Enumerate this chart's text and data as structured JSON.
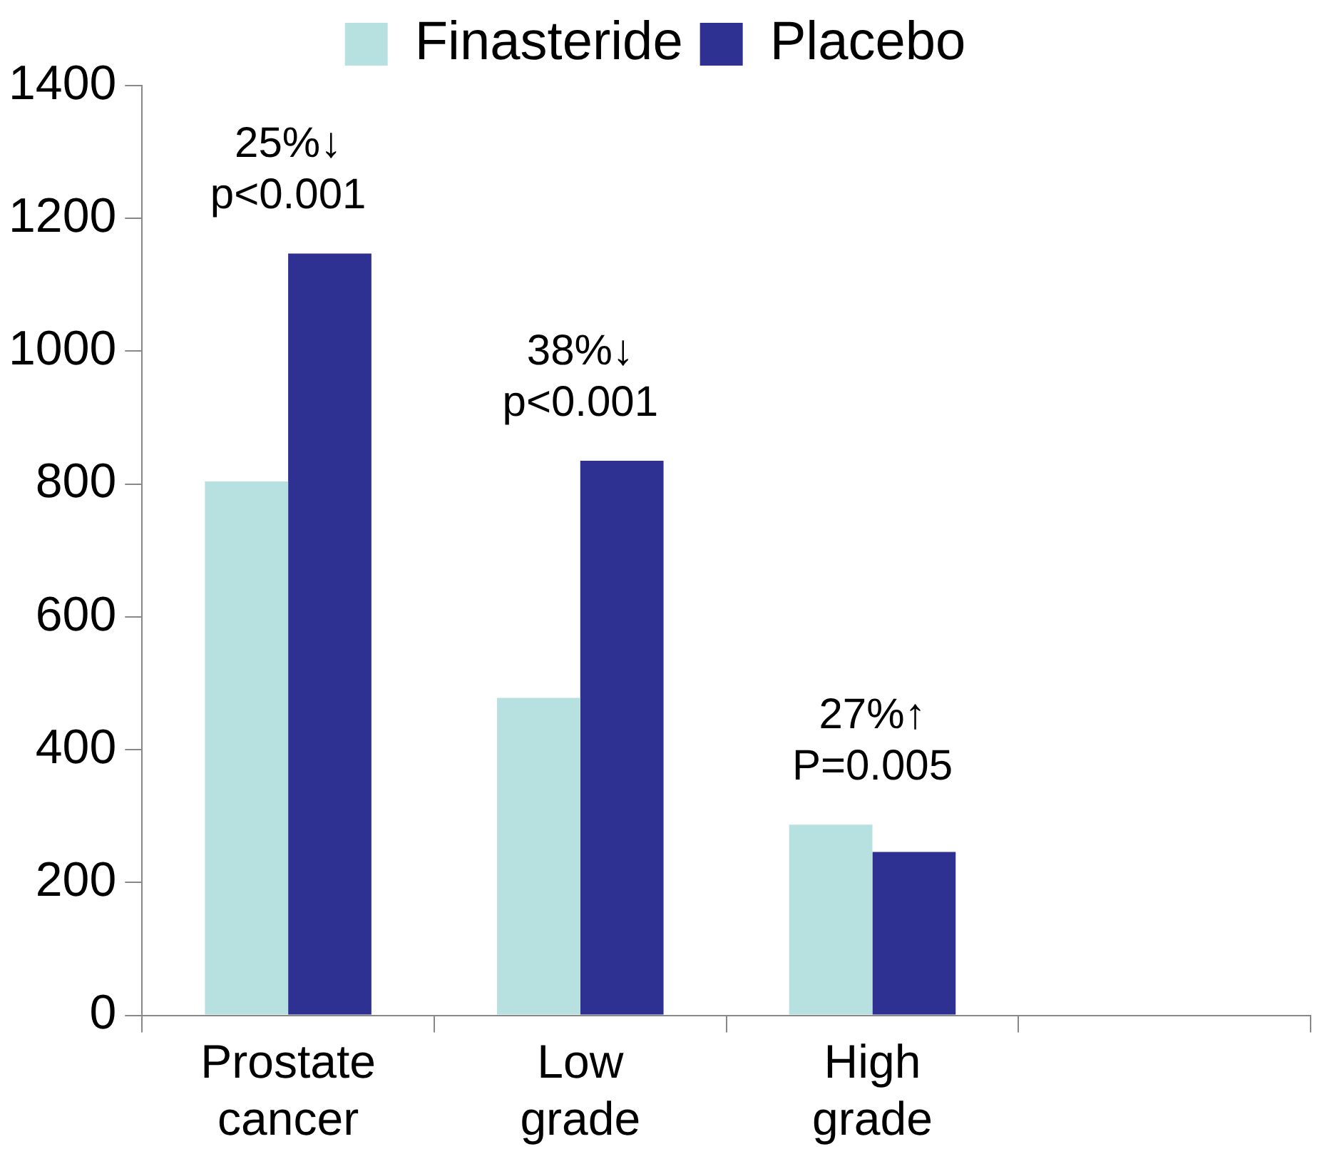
{
  "chart_data": {
    "type": "bar",
    "categories": [
      "Prostate cancer",
      "Low grade",
      "High grade",
      null
    ],
    "series": [
      {
        "name": "Finasteride",
        "color": "#b7e0e0",
        "values": [
          804,
          478,
          287,
          null
        ]
      },
      {
        "name": "Placebo",
        "color": "#2e3192",
        "values": [
          1147,
          835,
          246,
          null
        ]
      }
    ],
    "ylim": [
      0,
      1400
    ],
    "yticks": [
      0,
      200,
      400,
      600,
      800,
      1000,
      1200,
      1400
    ],
    "legend": "top",
    "annotations": [
      "25%↓\np<0.001",
      "38%↓\np<0.001",
      "27%↑\nP=0.005"
    ]
  }
}
